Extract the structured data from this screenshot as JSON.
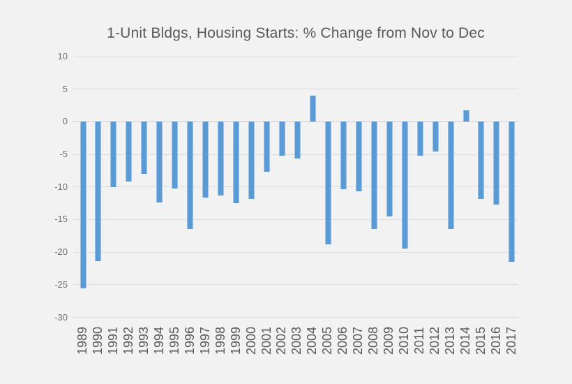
{
  "chart_data": {
    "type": "bar",
    "title": "1-Unit Bldgs, Housing Starts: % Change from Nov to Dec",
    "xlabel": "",
    "ylabel": "",
    "categories": [
      "1989",
      "1990",
      "1991",
      "1992",
      "1993",
      "1994",
      "1995",
      "1996",
      "1997",
      "1998",
      "1999",
      "2000",
      "2001",
      "2002",
      "2003",
      "2004",
      "2005",
      "2006",
      "2007",
      "2008",
      "2009",
      "2010",
      "2011",
      "2012",
      "2013",
      "2014",
      "2015",
      "2016",
      "2017"
    ],
    "values": [
      -25.6,
      -21.4,
      -10.0,
      -9.2,
      -8.0,
      -12.4,
      -10.2,
      -16.5,
      -11.6,
      -11.3,
      -12.5,
      -11.9,
      -7.7,
      -5.2,
      -5.6,
      4.0,
      -18.8,
      -10.3,
      -10.7,
      -16.5,
      -14.5,
      -19.4,
      -5.2,
      -4.6,
      -16.4,
      1.8,
      -11.8,
      -12.7,
      -21.5
    ],
    "ylim": [
      -30,
      10
    ],
    "yticks": [
      10,
      5,
      0,
      -5,
      -10,
      -15,
      -20,
      -25,
      -30
    ],
    "grid": true,
    "legend": false,
    "bar_color": "#5b9bd5",
    "bar_edge_color": "#9dc3e6",
    "gridline_color": "#dddcdc",
    "zero_line_color": "#c9c8c8",
    "background_color": "#f3f2f2",
    "title_color": "#595959",
    "x_label_color": "#595959",
    "y_label_color": "#6f6f6f"
  }
}
